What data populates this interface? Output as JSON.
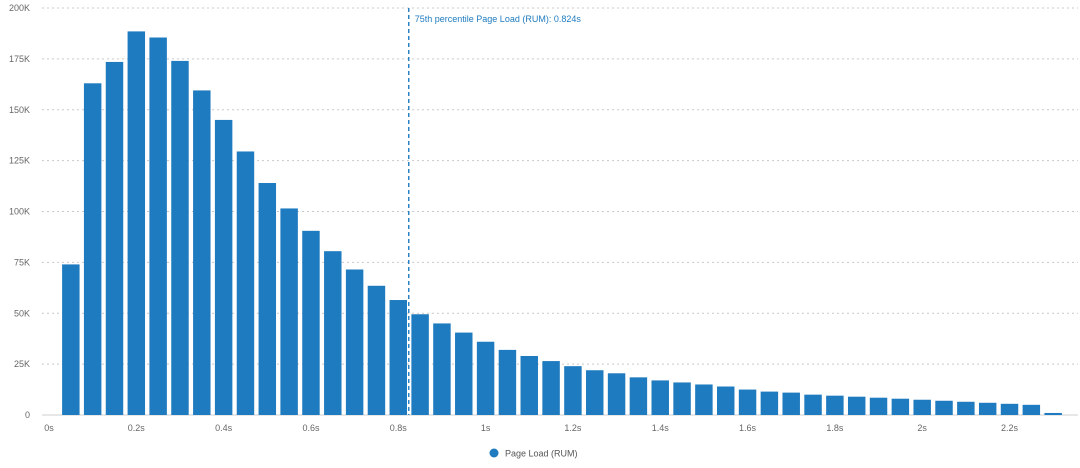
{
  "chart_data": {
    "type": "bar",
    "x": [
      0.05,
      0.1,
      0.15,
      0.2,
      0.25,
      0.3,
      0.35,
      0.4,
      0.45,
      0.5,
      0.55,
      0.6,
      0.65,
      0.7,
      0.75,
      0.8,
      0.85,
      0.9,
      0.95,
      1.0,
      1.05,
      1.1,
      1.15,
      1.2,
      1.25,
      1.3,
      1.35,
      1.4,
      1.45,
      1.5,
      1.55,
      1.6,
      1.65,
      1.7,
      1.75,
      1.8,
      1.85,
      1.9,
      1.95,
      2.0,
      2.05,
      2.1,
      2.15,
      2.2,
      2.25,
      2.3
    ],
    "series": [
      {
        "name": "Page Load (RUM)",
        "color": "#1f7bbf",
        "values": [
          74000,
          163000,
          173500,
          188500,
          185500,
          174000,
          159500,
          145000,
          129500,
          114000,
          101500,
          90500,
          80500,
          71500,
          63500,
          56500,
          49500,
          45000,
          40500,
          36000,
          32000,
          29000,
          26500,
          24000,
          22000,
          20500,
          18500,
          17000,
          16000,
          15000,
          14000,
          12500,
          11500,
          11000,
          10000,
          9500,
          9000,
          8500,
          8000,
          7500,
          7000,
          6500,
          6000,
          5500,
          5000,
          1000
        ]
      }
    ],
    "xlim": [
      0,
      2.35
    ],
    "ylim": [
      0,
      200000
    ],
    "x_ticks": [
      0,
      0.2,
      0.4,
      0.6,
      0.8,
      1.0,
      1.2,
      1.4,
      1.6,
      1.8,
      2.0,
      2.2
    ],
    "x_tick_labels": [
      "0s",
      "0.2s",
      "0.4s",
      "0.6s",
      "0.8s",
      "1s",
      "1.2s",
      "1.4s",
      "1.6s",
      "1.8s",
      "2s",
      "2.2s"
    ],
    "y_ticks": [
      0,
      25000,
      50000,
      75000,
      100000,
      125000,
      150000,
      175000,
      200000
    ],
    "y_tick_labels": [
      "0",
      "25K",
      "50K",
      "75K",
      "100K",
      "125K",
      "150K",
      "175K",
      "200K"
    ],
    "grid": true,
    "legend_position": "bottom-center",
    "annotation": {
      "x": 0.824,
      "label": "75th percentile Page Load (RUM): 0.824s",
      "color": "#1f7bbf"
    }
  }
}
